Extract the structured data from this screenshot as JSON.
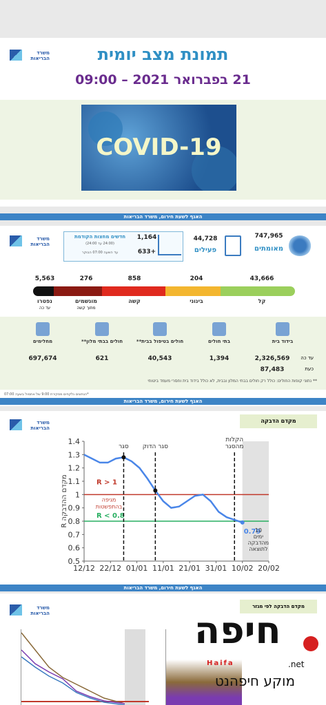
{
  "logo_text": "משרד הבריאות",
  "footer": "האגף לשעת חירום, משרד הבריאות",
  "page1": {
    "title": "תמונת מצב יומית",
    "subtitle": "21 בפברואר 2021 – 09:00",
    "image_text": "COVID-19"
  },
  "page2": {
    "confirmed": {
      "value": "747,965",
      "label": "מאומתים"
    },
    "active": {
      "value": "44,728",
      "label": "פעילים"
    },
    "new": {
      "value": "1,164",
      "label": "חדשים מחצות הקודמת",
      "note1": "(24:00 עד 24:00)",
      "note2": "עד השעה 07:00 הבוקר",
      "extra": "633+"
    },
    "severity": [
      {
        "value": "43,666",
        "label": "קל"
      },
      {
        "value": "204",
        "label": "בינוני"
      },
      {
        "value": "858",
        "label": "קשה"
      },
      {
        "value": "276",
        "label": "מונשמים",
        "sub": "מתוך קשה"
      },
      {
        "value": "5,563",
        "label": "נפטרו",
        "sub": "עד כה"
      }
    ],
    "isolation": {
      "label": "בידוד בית",
      "total_label": "עד כה",
      "total": "2,326,569",
      "now_label": "כעת",
      "now": "87,483"
    },
    "hospitals": {
      "label": "בתי חולים",
      "value": "1,394"
    },
    "home_care": {
      "label": "חולים בטיפול בבית**",
      "value": "40,543"
    },
    "hotels": {
      "label": "חולים בבתי מלון**",
      "value": "621"
    },
    "recovered": {
      "label": "מחלימים",
      "value": "697,674"
    },
    "footnote": "** נתוני קופות החולים: כולל רק חולים בבתי המלון ובבית, לא כולל בידוד בית וחסרי מעמד ביטוחי",
    "footnote2": "*הנתונים נלקחים מסקירת 9:00 של אתמול בשעה 07:00"
  },
  "page3": {
    "section_label": "מקדם הדבקה",
    "chart": {
      "type": "line",
      "y_label": "מקדם ההדבקה R",
      "x": [
        0,
        3,
        6,
        9,
        12,
        15,
        18,
        21,
        24,
        27,
        30,
        33,
        36,
        39,
        42,
        45,
        48,
        51,
        54,
        57,
        60
      ],
      "values": [
        1.3,
        1.27,
        1.24,
        1.24,
        1.27,
        1.28,
        1.25,
        1.2,
        1.12,
        1.03,
        0.95,
        0.9,
        0.91,
        0.95,
        0.99,
        1.0,
        0.95,
        0.87,
        0.83,
        0.81,
        0.79
      ],
      "color": "#4a86e8",
      "xlim": [
        0,
        70
      ],
      "ylim": [
        0.5,
        1.4
      ],
      "xticks": [
        {
          "value": 0,
          "label": "12/12"
        },
        {
          "value": 10,
          "label": "22/12"
        },
        {
          "value": 20,
          "label": "01/01"
        },
        {
          "value": 30,
          "label": "11/01"
        },
        {
          "value": 40,
          "label": "21/01"
        },
        {
          "value": 50,
          "label": "31/01"
        },
        {
          "value": 60,
          "label": "10/02"
        },
        {
          "value": 70,
          "label": "20/02"
        }
      ],
      "yticks": [
        0.5,
        0.6,
        0.7,
        0.8,
        0.9,
        1,
        1.1,
        1.2,
        1.3,
        1.4
      ],
      "grid": false,
      "reference_lines": [
        {
          "value": 1,
          "color": "#c0392b",
          "label": "R > 1",
          "sub": [
            "מגיפה",
            "בהתפשטות"
          ]
        },
        {
          "value": 0.8,
          "color": "#27ae60",
          "label": "R < 0.8"
        }
      ],
      "events": [
        {
          "x": 15,
          "label": [
            "סגר"
          ]
        },
        {
          "x": 27,
          "label": [
            "סגר הדוק"
          ]
        },
        {
          "x": 57,
          "label": [
            "הקלות",
            "מהסגר"
          ]
        }
      ],
      "shaded_from": 60,
      "shaded_note": [
        "10",
        "ימים",
        "מהדבקה",
        "לתוצאה"
      ],
      "last_label": "0.79"
    }
  },
  "page4": {
    "section_label": "מקדם הדבקה לפי מגזר"
  },
  "watermark": {
    "brand": "חיפה",
    "latin": "Haifa",
    "tld": ".net",
    "site": "מוקע חיפהנט"
  }
}
